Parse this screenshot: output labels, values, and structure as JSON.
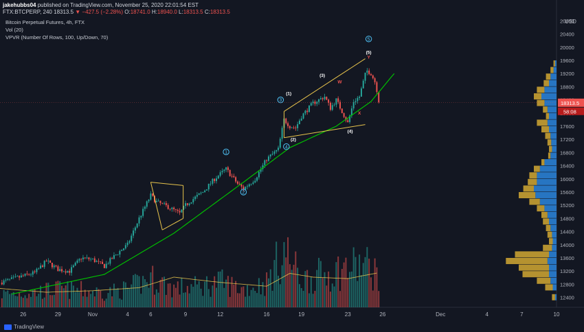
{
  "header": {
    "user": "jakehubbs04",
    "published": "published on TradingView.com, November 25, 2020 22:01:54 EST",
    "symbol_line": "FTX:BTCPERP, 240",
    "last_price": "18313.5",
    "change": "▼ −427.5 (−2.28%)",
    "o_label": "O:",
    "o_value": "18741.0",
    "h_label": "H:",
    "h_value": "18940.0",
    "l_label": "L:",
    "l_value": "18313.5",
    "c_label": "C:",
    "c_value": "18313.5"
  },
  "legend": {
    "title": "Bitcoin Perpetual Futures, 4h, FTX",
    "vol": "Vol (20)",
    "vpvr": "VPVR (Number Of Rows, 100, Up/Down, 70)"
  },
  "footer": {
    "brand": "TradingView"
  },
  "colors": {
    "background": "#131722",
    "up": "#26a69a",
    "down": "#ef5350",
    "trendline": "#00c000",
    "channel": "#e8c44c",
    "wave_count": "#4fc3f7",
    "vpvr_up": "#2a7fd4",
    "vpvr_down": "#c8a032",
    "price_tag": "#ef5350"
  },
  "chart_data": {
    "type": "candlestick",
    "title": "Bitcoin Perpetual Futures, 4h, FTX",
    "currency": "USD",
    "price_axis": {
      "ticks": [
        20800,
        20400,
        20000,
        19600,
        19200,
        18800,
        18400,
        18000,
        17600,
        17200,
        16800,
        16400,
        16000,
        15600,
        15200,
        14800,
        14400,
        14000,
        13600,
        13200,
        12800,
        12400
      ],
      "range": [
        12100,
        21100
      ],
      "current_price_label": "18313.5",
      "countdown_label": "58:08"
    },
    "time_axis": {
      "labels": [
        "26",
        "29",
        "Nov",
        "4",
        "6",
        "9",
        "12",
        "16",
        "19",
        "23",
        "26",
        "Dec",
        "4",
        "7",
        "10"
      ],
      "label_days": [
        -5,
        -2,
        1,
        4,
        6,
        9,
        12,
        16,
        19,
        23,
        26,
        31,
        35,
        38,
        41
      ],
      "range_days": [
        -7,
        41
      ],
      "note": "days relative to Oct 31 2020"
    },
    "price_path_anchors": [
      [
        -7,
        12850
      ],
      [
        -5,
        13050
      ],
      [
        -4,
        13150
      ],
      [
        -3,
        13500
      ],
      [
        -2,
        13250
      ],
      [
        -1,
        13200
      ],
      [
        0,
        13600
      ],
      [
        1,
        13550
      ],
      [
        2,
        13350
      ],
      [
        3,
        13700
      ],
      [
        4,
        14000
      ],
      [
        5,
        14800
      ],
      [
        6,
        15500
      ],
      [
        6.5,
        15300
      ],
      [
        7.5,
        15150
      ],
      [
        8.5,
        14950
      ],
      [
        9,
        15200
      ],
      [
        9.5,
        15350
      ],
      [
        10.5,
        15600
      ],
      [
        11.5,
        16000
      ],
      [
        12.5,
        16300
      ],
      [
        13.5,
        15850
      ],
      [
        14,
        15700
      ],
      [
        15,
        16000
      ],
      [
        16,
        16600
      ],
      [
        17,
        16900
      ],
      [
        17.5,
        17800
      ],
      [
        18,
        17600
      ],
      [
        18.5,
        17550
      ],
      [
        19,
        17900
      ],
      [
        20,
        18300
      ],
      [
        21,
        18500
      ],
      [
        21.5,
        18150
      ],
      [
        22,
        18400
      ],
      [
        23,
        17700
      ],
      [
        23.5,
        18350
      ],
      [
        24,
        18500
      ],
      [
        24.6,
        19300
      ],
      [
        25,
        19200
      ],
      [
        25.4,
        18900
      ],
      [
        25.7,
        18313.5
      ]
    ],
    "volume_anchors": [
      [
        -7,
        0.22
      ],
      [
        -4,
        0.25
      ],
      [
        -2,
        0.3
      ],
      [
        0,
        0.28
      ],
      [
        2,
        0.24
      ],
      [
        4,
        0.3
      ],
      [
        6,
        0.48
      ],
      [
        8,
        0.32
      ],
      [
        10,
        0.34
      ],
      [
        12,
        0.42
      ],
      [
        14,
        0.3
      ],
      [
        16,
        0.4
      ],
      [
        17.5,
        0.95
      ],
      [
        19,
        0.45
      ],
      [
        21,
        0.55
      ],
      [
        23,
        0.65
      ],
      [
        24.5,
        0.7
      ],
      [
        25.7,
        0.55
      ]
    ],
    "volume_ma_anchors": [
      [
        -7,
        0.25
      ],
      [
        -3,
        0.2
      ],
      [
        1,
        0.22
      ],
      [
        5,
        0.26
      ],
      [
        8,
        0.4
      ],
      [
        12,
        0.33
      ],
      [
        16,
        0.28
      ],
      [
        18,
        0.45
      ],
      [
        20,
        0.4
      ],
      [
        23,
        0.38
      ],
      [
        25.7,
        0.46
      ]
    ],
    "trendline": [
      [
        -6,
        12500
      ],
      [
        2,
        13100
      ],
      [
        8,
        14350
      ],
      [
        14,
        15900
      ],
      [
        18,
        16950
      ],
      [
        22,
        17600
      ],
      [
        25,
        18350
      ],
      [
        27,
        19200
      ]
    ],
    "patterns": [
      {
        "name": "flag",
        "lines": [
          [
            [
              6,
              15900
            ],
            [
              8.8,
              15800
            ]
          ],
          [
            [
              7,
              14450
            ],
            [
              8.8,
              14800
            ]
          ],
          [
            [
              6,
              15900
            ],
            [
              7,
              14450
            ]
          ],
          [
            [
              8.8,
              15800
            ],
            [
              8.8,
              14800
            ]
          ]
        ]
      },
      {
        "name": "channel",
        "lines": [
          [
            [
              17.5,
              18050
            ],
            [
              24.5,
              19650
            ]
          ],
          [
            [
              17.5,
              17250
            ],
            [
              24.5,
              17650
            ]
          ],
          [
            [
              17.5,
              18050
            ],
            [
              17.5,
              17250
            ]
          ]
        ]
      }
    ],
    "wave_labels": [
      {
        "text": "5",
        "day": 24.8,
        "price": 20250,
        "style": "circle"
      },
      {
        "text": "(5)",
        "day": 24.8,
        "price": 19800,
        "style": "plain"
      },
      {
        "text": "Y",
        "day": 24.8,
        "price": 19650,
        "style": "red"
      },
      {
        "text": "(3)",
        "day": 20.8,
        "price": 19100,
        "style": "plain"
      },
      {
        "text": "W",
        "day": 22.3,
        "price": 18900,
        "style": "red"
      },
      {
        "text": "(1)",
        "day": 17.9,
        "price": 18550,
        "style": "plain"
      },
      {
        "text": "3",
        "day": 17.2,
        "price": 18400,
        "style": "circle"
      },
      {
        "text": "(2)",
        "day": 18.3,
        "price": 17150,
        "style": "plain"
      },
      {
        "text": "(4)",
        "day": 23.2,
        "price": 17400,
        "style": "plain"
      },
      {
        "text": "X",
        "day": 24.0,
        "price": 17950,
        "style": "red"
      },
      {
        "text": "4",
        "day": 17.7,
        "price": 16980,
        "style": "circle"
      },
      {
        "text": "1",
        "day": 12.5,
        "price": 16820,
        "style": "circle"
      },
      {
        "text": "2",
        "day": 14.0,
        "price": 15600,
        "style": "circle"
      }
    ],
    "vpvr_profile": [
      [
        12400,
        0.02,
        0.04
      ],
      [
        12700,
        0.05,
        0.1
      ],
      [
        12900,
        0.08,
        0.18
      ],
      [
        13100,
        0.1,
        0.35
      ],
      [
        13300,
        0.1,
        0.4
      ],
      [
        13500,
        0.12,
        0.55
      ],
      [
        13700,
        0.1,
        0.45
      ],
      [
        13900,
        0.06,
        0.12
      ],
      [
        14100,
        0.05,
        0.05
      ],
      [
        14300,
        0.06,
        0.06
      ],
      [
        14500,
        0.08,
        0.06
      ],
      [
        14700,
        0.1,
        0.08
      ],
      [
        14900,
        0.12,
        0.08
      ],
      [
        15100,
        0.16,
        0.1
      ],
      [
        15300,
        0.22,
        0.14
      ],
      [
        15500,
        0.28,
        0.22
      ],
      [
        15700,
        0.3,
        0.14
      ],
      [
        15900,
        0.26,
        0.12
      ],
      [
        16100,
        0.26,
        0.1
      ],
      [
        16300,
        0.22,
        0.08
      ],
      [
        16500,
        0.16,
        0.04
      ],
      [
        16700,
        0.08,
        0.03
      ],
      [
        16900,
        0.06,
        0.04
      ],
      [
        17100,
        0.07,
        0.05
      ],
      [
        17300,
        0.08,
        0.07
      ],
      [
        17500,
        0.1,
        0.1
      ],
      [
        17700,
        0.12,
        0.14
      ],
      [
        17900,
        0.1,
        0.04
      ],
      [
        18100,
        0.12,
        0.06
      ],
      [
        18300,
        0.16,
        0.1
      ],
      [
        18500,
        0.2,
        0.1
      ],
      [
        18700,
        0.16,
        0.1
      ],
      [
        18900,
        0.1,
        0.07
      ],
      [
        19100,
        0.08,
        0.06
      ],
      [
        19300,
        0.04,
        0.04
      ],
      [
        19500,
        0.02,
        0.02
      ]
    ]
  }
}
